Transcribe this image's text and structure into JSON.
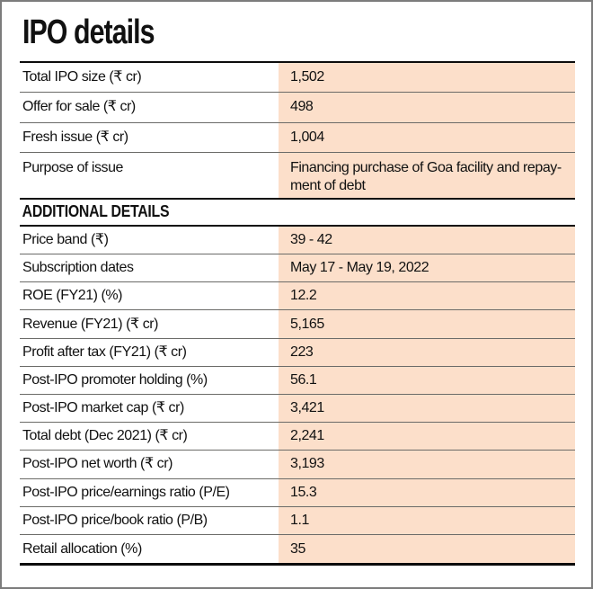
{
  "page": {
    "title": "IPO details"
  },
  "colors": {
    "value_column_bg": "#fcdfca"
  },
  "tables": [
    {
      "name": "ipo-details",
      "rows": [
        {
          "label": "Total IPO size (₹ cr)",
          "value": "1,502"
        },
        {
          "label": "Offer for sale (₹ cr)",
          "value": "498"
        },
        {
          "label": "Fresh issue (₹ cr)",
          "value": "1,004"
        },
        {
          "label": "Purpose of issue",
          "value": "Financing purchase of Goa facility and repay-\nment of debt"
        }
      ]
    },
    {
      "name": "additional-details",
      "header": "ADDITIONAL DETAILS",
      "rows": [
        {
          "label": "Price band (₹)",
          "value": "39 - 42"
        },
        {
          "label": "Subscription dates",
          "value": "May 17 - May 19, 2022"
        },
        {
          "label": "ROE (FY21) (%)",
          "value": "12.2"
        },
        {
          "label": "Revenue (FY21) (₹ cr)",
          "value": "5,165"
        },
        {
          "label": "Profit after tax (FY21) (₹ cr)",
          "value": "223"
        },
        {
          "label": "Post-IPO promoter holding (%)",
          "value": "56.1"
        },
        {
          "label": "Post-IPO market cap (₹ cr)",
          "value": "3,421"
        },
        {
          "label": "Total debt (Dec 2021) (₹ cr)",
          "value": "2,241"
        },
        {
          "label": "Post-IPO net worth (₹ cr)",
          "value": "3,193"
        },
        {
          "label": "Post-IPO price/earnings ratio (P/E)",
          "value": "15.3"
        },
        {
          "label": "Post-IPO price/book ratio (P/B)",
          "value": "1.1"
        },
        {
          "label": "Retail allocation (%)",
          "value": "35"
        }
      ]
    }
  ]
}
